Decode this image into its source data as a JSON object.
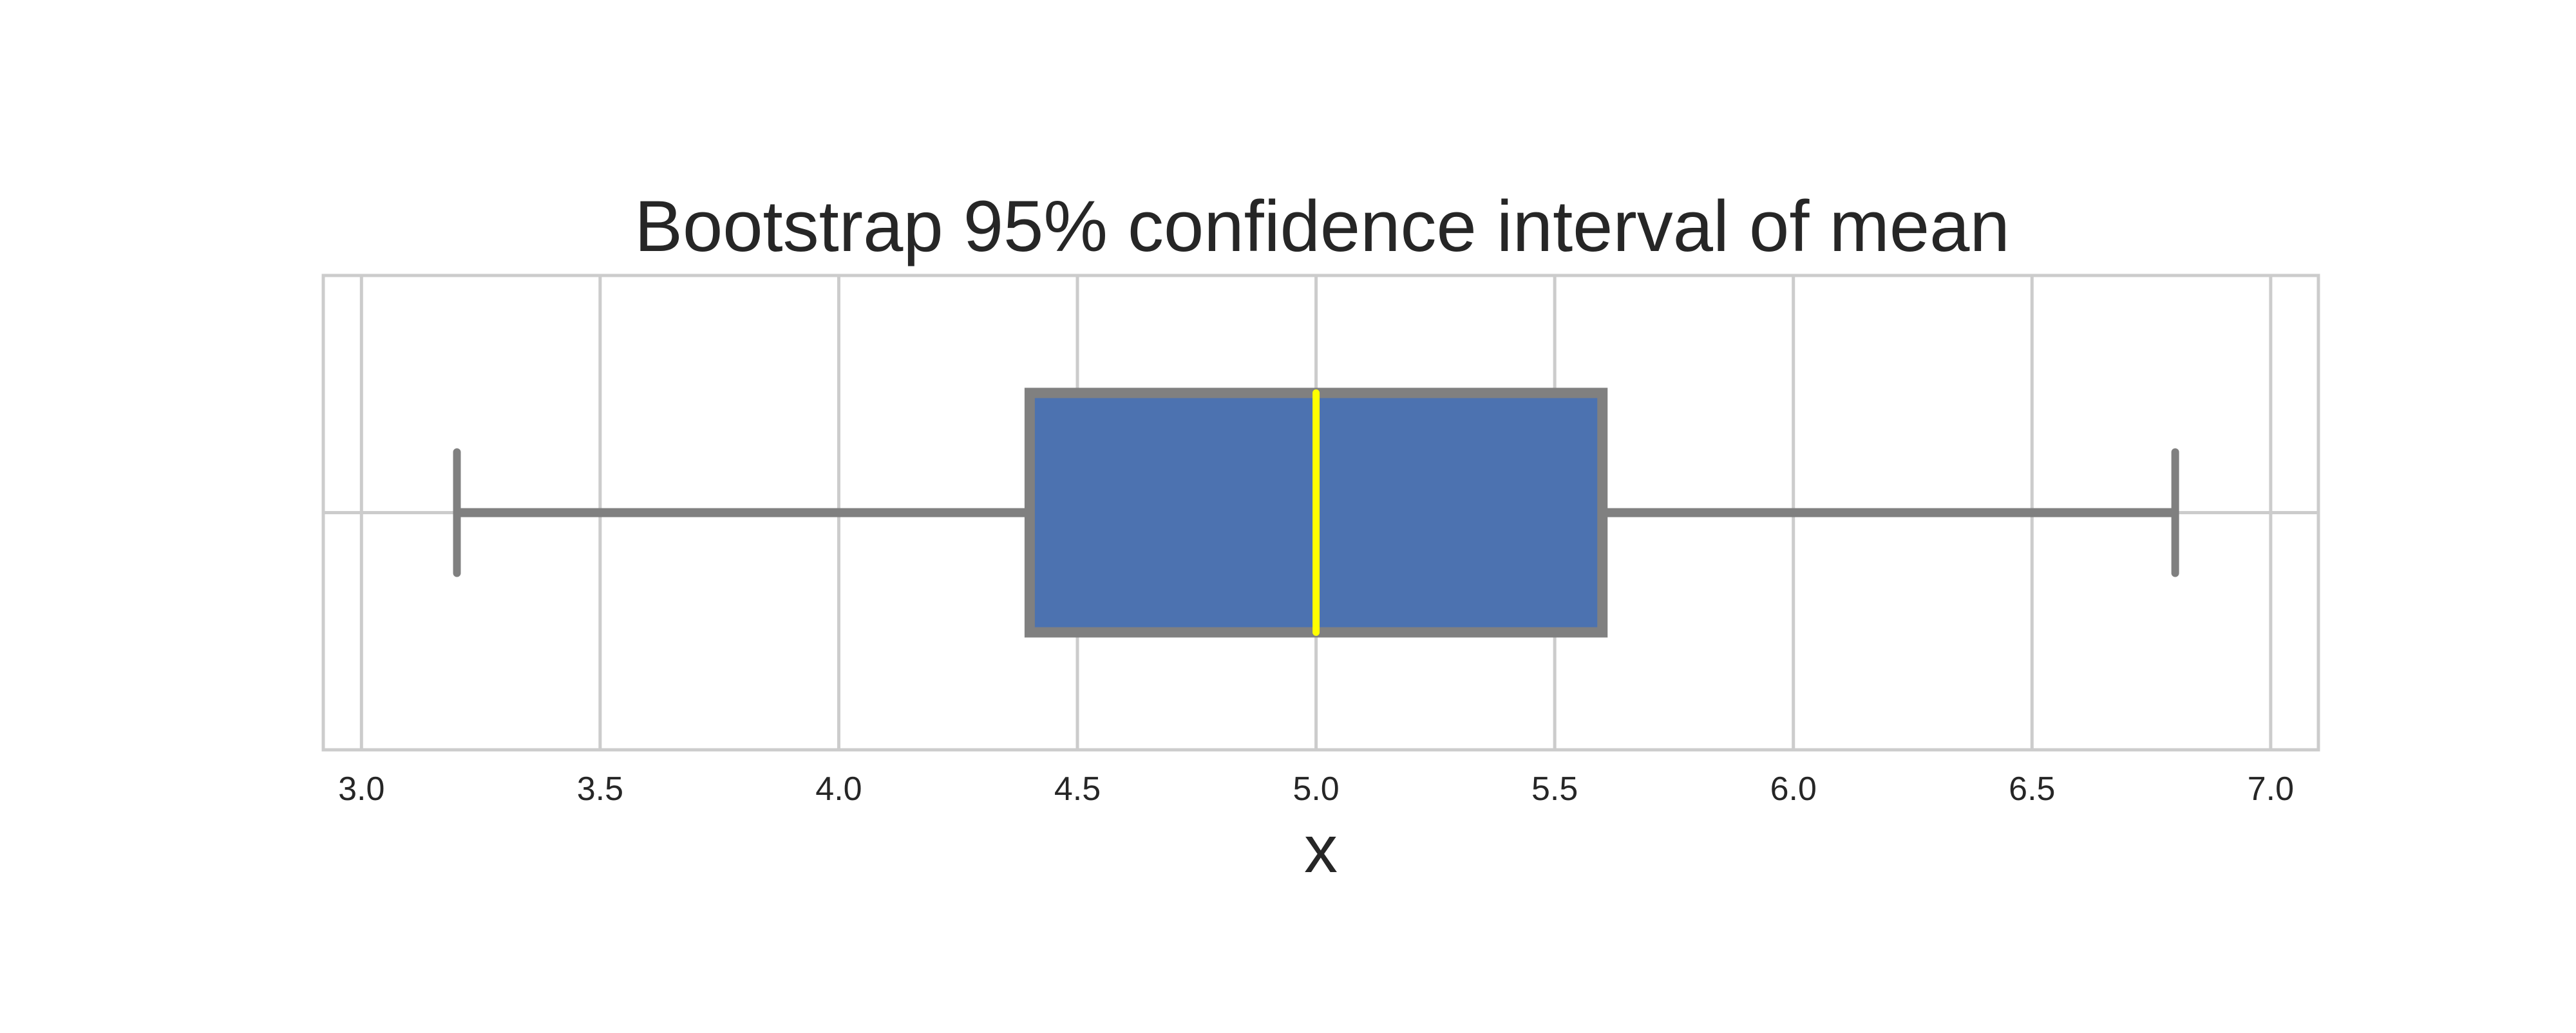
{
  "chart_data": {
    "type": "box",
    "orientation": "horizontal",
    "title": "Bootstrap 95% confidence interval of mean",
    "xlabel": "x",
    "ylabel": "",
    "xlim": [
      2.92,
      7.1
    ],
    "xticks": [
      3.0,
      3.5,
      4.0,
      4.5,
      5.0,
      5.5,
      6.0,
      6.5,
      7.0
    ],
    "xtick_labels": [
      "3.0",
      "3.5",
      "4.0",
      "4.5",
      "5.0",
      "5.5",
      "6.0",
      "6.5",
      "7.0"
    ],
    "grid": true,
    "box": {
      "whisker_low": 3.2,
      "q1": 4.4,
      "median": 5.0,
      "q3": 5.6,
      "whisker_high": 6.8
    },
    "colors": {
      "box_fill": "#4c72b0",
      "box_edge": "#808080",
      "median_line": "#ffff00",
      "grid": "#cccccc",
      "spine": "#cccccc"
    }
  }
}
